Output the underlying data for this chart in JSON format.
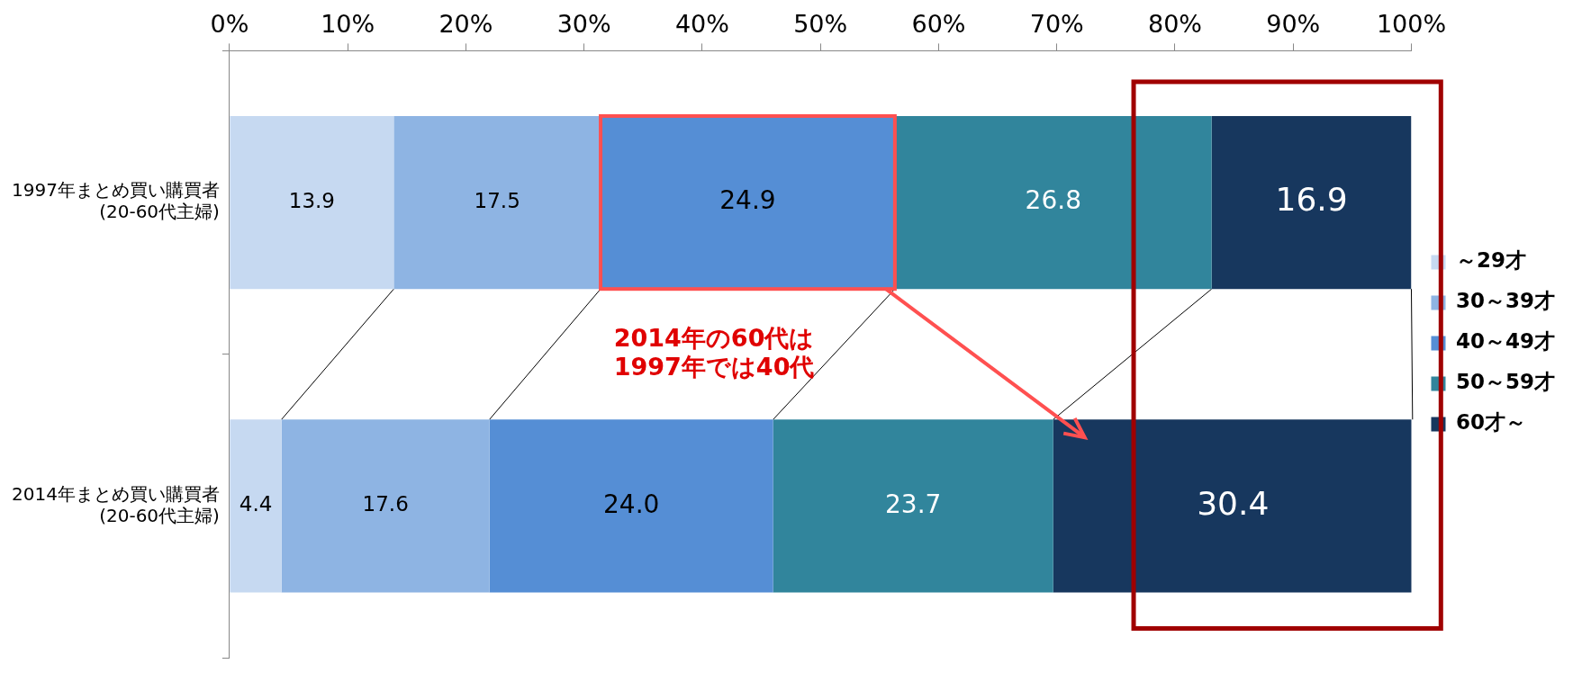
{
  "chart_data": {
    "type": "bar",
    "orientation": "horizontal",
    "stacked": true,
    "categories": [
      "1997年まとめ買い購買者\n(20-60代主婦)",
      "2014年まとめ買い購買者\n(20-60代主婦)"
    ],
    "series": [
      {
        "name": "～29才",
        "color": "#c6d9f1",
        "values": [
          13.9,
          4.4
        ],
        "value_labels": [
          "13.9",
          "4.4"
        ]
      },
      {
        "name": "30～39才",
        "color": "#8eb4e3",
        "values": [
          17.5,
          17.6
        ],
        "value_labels": [
          "17.5",
          "17.6"
        ]
      },
      {
        "name": "40～49才",
        "color": "#558ed5",
        "values": [
          24.9,
          24.0
        ],
        "value_labels": [
          "24.9",
          "24.0"
        ]
      },
      {
        "name": "50～59才",
        "color": "#31859c",
        "values": [
          26.8,
          23.7
        ],
        "value_labels": [
          "26.8",
          "23.7"
        ]
      },
      {
        "name": "60才～",
        "color": "#17375e",
        "values": [
          16.9,
          30.4
        ],
        "value_labels": [
          "16.9",
          "30.4"
        ]
      }
    ],
    "xlim": [
      0,
      100
    ],
    "xticks": [
      {
        "value": 0,
        "label": "0%"
      },
      {
        "value": 10,
        "label": "10%"
      },
      {
        "value": 20,
        "label": "20%"
      },
      {
        "value": 30,
        "label": "30%"
      },
      {
        "value": 40,
        "label": "40%"
      },
      {
        "value": 50,
        "label": "50%"
      },
      {
        "value": 60,
        "label": "60%"
      },
      {
        "value": 70,
        "label": "70%"
      },
      {
        "value": 80,
        "label": "80%"
      },
      {
        "value": 90,
        "label": "90%"
      },
      {
        "value": 100,
        "label": "100%"
      }
    ],
    "annotations": [
      "2014年の60代は\n1997年では40代"
    ],
    "legend": "right",
    "grid": false
  }
}
